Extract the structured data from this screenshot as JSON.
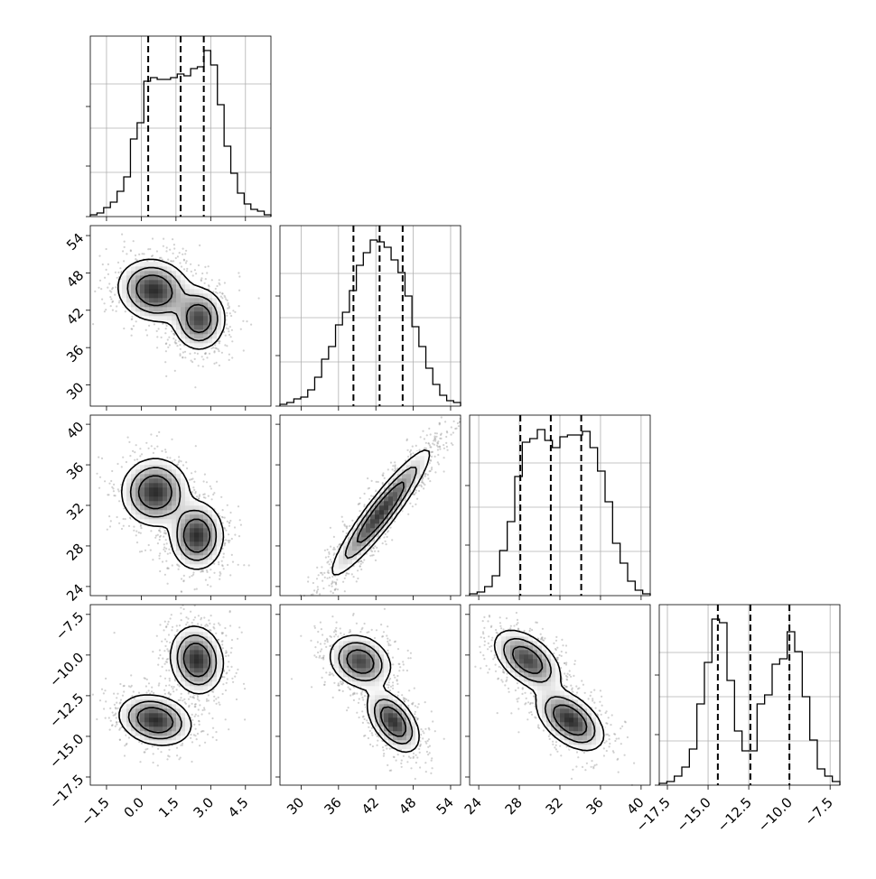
{
  "chart_data": {
    "type": "corner",
    "variables": [
      {
        "ticks": [
          "−1.5",
          "0.0",
          "1.5",
          "3.0",
          "4.5"
        ],
        "tick_values": [
          -1.5,
          0.0,
          1.5,
          3.0,
          4.5
        ],
        "range": [
          -2.2,
          5.6
        ],
        "quantiles": [
          0.3,
          1.7,
          2.7
        ]
      },
      {
        "ticks": [
          "30",
          "36",
          "42",
          "48",
          "54"
        ],
        "tick_values": [
          30,
          36,
          42,
          48,
          54
        ],
        "range": [
          26.6,
          55.6
        ],
        "quantiles": [
          38.4,
          42.6,
          46.3
        ]
      },
      {
        "ticks": [
          "24",
          "28",
          "32",
          "36",
          "40"
        ],
        "tick_values": [
          24,
          28,
          32,
          36,
          40
        ],
        "range": [
          23.1,
          40.9
        ],
        "quantiles": [
          28.1,
          31.1,
          34.1
        ]
      },
      {
        "ticks": [
          "−17.5",
          "−15.0",
          "−12.5",
          "−10.0",
          "−7.5"
        ],
        "tick_values": [
          -17.5,
          -15.0,
          -12.5,
          -10.0,
          -7.5
        ],
        "range": [
          -18.0,
          -6.9
        ],
        "quantiles": [
          -14.4,
          -12.4,
          -10.0
        ]
      }
    ],
    "histograms": [
      {
        "values": [
          0.01,
          0.02,
          0.05,
          0.08,
          0.14,
          0.22,
          0.43,
          0.52,
          0.75,
          0.77,
          0.76,
          0.76,
          0.77,
          0.79,
          0.78,
          0.82,
          0.83,
          0.92,
          0.84,
          0.62,
          0.39,
          0.24,
          0.13,
          0.07,
          0.04,
          0.03,
          0.01
        ]
      },
      {
        "values": [
          0.01,
          0.02,
          0.04,
          0.05,
          0.09,
          0.16,
          0.26,
          0.33,
          0.45,
          0.52,
          0.64,
          0.78,
          0.85,
          0.92,
          0.91,
          0.88,
          0.81,
          0.74,
          0.61,
          0.44,
          0.33,
          0.21,
          0.12,
          0.06,
          0.03,
          0.02
        ]
      },
      {
        "values": [
          0.01,
          0.02,
          0.05,
          0.11,
          0.25,
          0.41,
          0.66,
          0.85,
          0.87,
          0.92,
          0.86,
          0.82,
          0.88,
          0.89,
          0.89,
          0.91,
          0.82,
          0.69,
          0.52,
          0.29,
          0.18,
          0.08,
          0.03,
          0.01
        ]
      },
      {
        "values": [
          0.01,
          0.02,
          0.05,
          0.1,
          0.2,
          0.45,
          0.68,
          0.92,
          0.9,
          0.58,
          0.3,
          0.19,
          0.19,
          0.45,
          0.5,
          0.67,
          0.7,
          0.85,
          0.74,
          0.49,
          0.25,
          0.09,
          0.05,
          0.02
        ]
      }
    ],
    "pairs": [
      {
        "x": 0,
        "y": 1,
        "modes": [
          {
            "cx": 0.55,
            "cy": 45.2,
            "sx": 0.75,
            "sy": 2.4,
            "rho": -0.1,
            "w": 1.0
          },
          {
            "cx": 2.5,
            "cy": 40.6,
            "sx": 0.55,
            "sy": 2.4,
            "rho": 0.0,
            "w": 0.9
          }
        ]
      },
      {
        "x": 0,
        "y": 2,
        "modes": [
          {
            "cx": 0.6,
            "cy": 33.3,
            "sx": 0.7,
            "sy": 1.6,
            "rho": 0.0,
            "w": 1.0
          },
          {
            "cx": 2.4,
            "cy": 29.0,
            "sx": 0.55,
            "sy": 1.6,
            "rho": 0.0,
            "w": 1.0
          }
        ]
      },
      {
        "x": 1,
        "y": 2,
        "modes": [
          {
            "cx": 42.8,
            "cy": 31.3,
            "sx": 3.8,
            "sy": 3.0,
            "rho": 0.93,
            "w": 1.0
          }
        ]
      },
      {
        "x": 0,
        "y": 3,
        "modes": [
          {
            "cx": 2.4,
            "cy": -10.3,
            "sx": 0.55,
            "sy": 1.0,
            "rho": -0.1,
            "w": 1.0
          },
          {
            "cx": 0.6,
            "cy": -14.0,
            "sx": 0.75,
            "sy": 0.75,
            "rho": -0.2,
            "w": 1.0
          }
        ]
      },
      {
        "x": 1,
        "y": 3,
        "modes": [
          {
            "cx": 39.5,
            "cy": -10.4,
            "sx": 2.4,
            "sy": 0.8,
            "rho": -0.2,
            "w": 0.9
          },
          {
            "cx": 44.8,
            "cy": -14.1,
            "sx": 2.0,
            "sy": 0.9,
            "rho": -0.5,
            "w": 1.0
          }
        ]
      },
      {
        "x": 2,
        "y": 3,
        "modes": [
          {
            "cx": 28.8,
            "cy": -10.3,
            "sx": 1.6,
            "sy": 0.9,
            "rho": -0.5,
            "w": 0.9
          },
          {
            "cx": 33.0,
            "cy": -14.0,
            "sx": 1.6,
            "sy": 0.9,
            "rho": -0.5,
            "w": 1.0
          }
        ]
      }
    ]
  }
}
